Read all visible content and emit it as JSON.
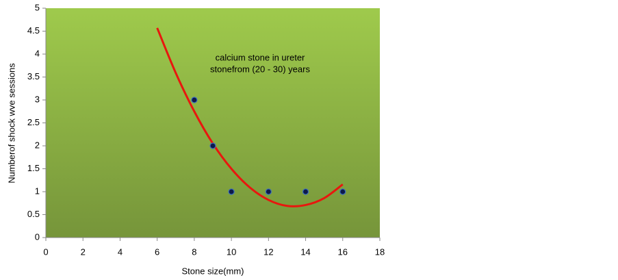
{
  "chart_data": {
    "type": "scatter",
    "x_label": "Stone size(mm)",
    "y_label": "Numberof shock wve sessions",
    "annotations": [
      "calcium stone in ureter",
      "stonefrom (20 - 30) years"
    ],
    "xlim": [
      0,
      18
    ],
    "xticks": [
      0,
      2,
      4,
      6,
      8,
      10,
      12,
      14,
      16,
      18
    ],
    "ylim": [
      0,
      5
    ],
    "yticks": [
      0,
      0.5,
      1,
      1.5,
      2,
      2.5,
      3,
      3.5,
      4,
      4.5,
      5
    ],
    "grid": false,
    "series": [
      {
        "color": "#0d1a4a",
        "x": [
          8,
          9,
          10,
          12,
          14,
          16
        ],
        "values": [
          3,
          2,
          1,
          1,
          1,
          1
        ]
      }
    ],
    "trendline": {
      "color": "#e8170e",
      "x": [
        6,
        7,
        8,
        9,
        10,
        11,
        12,
        13,
        14,
        15,
        16
      ],
      "values": [
        4.57,
        3.59,
        2.75,
        2.05,
        1.5,
        1.09,
        0.82,
        0.69,
        0.71,
        0.86,
        1.16
      ]
    }
  }
}
